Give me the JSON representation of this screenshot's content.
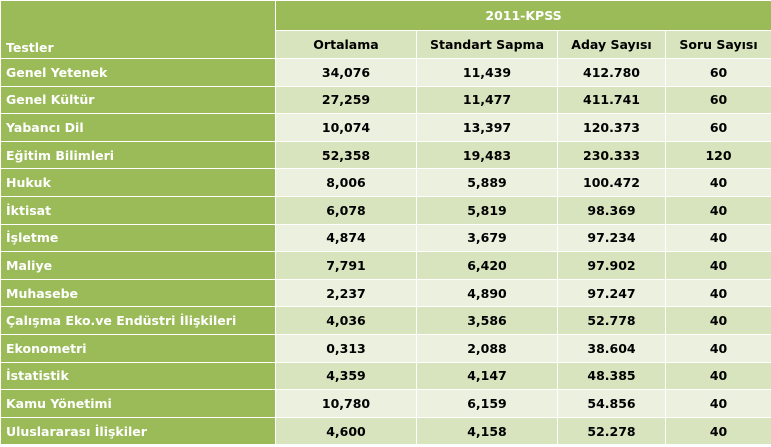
{
  "table": {
    "group_header": "2011-KPSS",
    "first_column_header": "Testler",
    "columns": [
      "Ortalama",
      "Standart Sapma",
      "Aday Sayısı",
      "Soru Sayısı"
    ],
    "rows": [
      {
        "label": "Genel Yetenek",
        "values": [
          "34,076",
          "11,439",
          "412.780",
          "60"
        ]
      },
      {
        "label": "Genel Kültür",
        "values": [
          "27,259",
          "11,477",
          "411.741",
          "60"
        ]
      },
      {
        "label": "Yabancı Dil",
        "values": [
          "10,074",
          "13,397",
          "120.373",
          "60"
        ]
      },
      {
        "label": "Eğitim Bilimleri",
        "values": [
          "52,358",
          "19,483",
          "230.333",
          "120"
        ]
      },
      {
        "label": "Hukuk",
        "values": [
          "8,006",
          "5,889",
          "100.472",
          "40"
        ]
      },
      {
        "label": "İktisat",
        "values": [
          "6,078",
          "5,819",
          "98.369",
          "40"
        ]
      },
      {
        "label": "İşletme",
        "values": [
          "4,874",
          "3,679",
          "97.234",
          "40"
        ]
      },
      {
        "label": "Maliye",
        "values": [
          "7,791",
          "6,420",
          "97.902",
          "40"
        ]
      },
      {
        "label": "Muhasebe",
        "values": [
          "2,237",
          "4,890",
          "97.247",
          "40"
        ]
      },
      {
        "label": "Çalışma Eko.ve Endüstri İlişkileri",
        "values": [
          "4,036",
          "3,586",
          "52.778",
          "40"
        ]
      },
      {
        "label": "Ekonometri",
        "values": [
          "0,313",
          "2,088",
          "38.604",
          "40"
        ]
      },
      {
        "label": "İstatistik",
        "values": [
          "4,359",
          "4,147",
          "48.385",
          "40"
        ]
      },
      {
        "label": "Kamu Yönetimi",
        "values": [
          "10,780",
          "6,159",
          "54.856",
          "40"
        ]
      },
      {
        "label": "Uluslararası İlişkiler",
        "values": [
          "4,600",
          "4,158",
          "52.278",
          "40"
        ]
      }
    ]
  },
  "colors": {
    "header_green": "#9bbb59",
    "light_green": "#ebf1de",
    "mid_green": "#d7e4bd"
  }
}
